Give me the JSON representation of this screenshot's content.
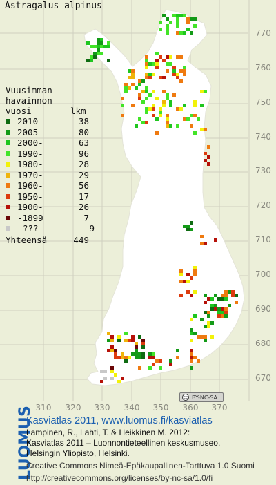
{
  "map": {
    "species": "Astragalus alpinus",
    "x_axis": {
      "ticks": [
        "310",
        "320",
        "330",
        "340",
        "350",
        "360",
        "370"
      ]
    },
    "y_axis": {
      "ticks": [
        "770",
        "760",
        "750",
        "740",
        "730",
        "720",
        "710",
        "700",
        "690",
        "680",
        "670"
      ]
    },
    "colors": {
      "background": "#ecefd9",
      "land": "#ffffff",
      "grid": "#cfcfc0",
      "label": "#8a8a80"
    }
  },
  "legend": {
    "heading_lines": [
      "Vuusimman",
      "havainnon"
    ],
    "heading_year": "vuosi",
    "heading_count": "lkm",
    "rows": [
      {
        "label": "2010-",
        "count": "38",
        "color": "#0f6b12"
      },
      {
        "label": "2005-",
        "count": "80",
        "color": "#139a17"
      },
      {
        "label": "2000-",
        "count": "63",
        "color": "#1fc61f"
      },
      {
        "label": "1990-",
        "count": "96",
        "color": "#42e428"
      },
      {
        "label": "1980-",
        "count": "28",
        "color": "#f2f20a"
      },
      {
        "label": "1970-",
        "count": "29",
        "color": "#f0b40a"
      },
      {
        "label": "1960-",
        "count": "56",
        "color": "#ef7a10"
      },
      {
        "label": "1950-",
        "count": "17",
        "color": "#dd3b0e"
      },
      {
        "label": "1900-",
        "count": "26",
        "color": "#b61109"
      },
      {
        "label": "-1899",
        "count": "7",
        "color": "#6a0707"
      },
      {
        "label": "???",
        "count": "9",
        "color": "#c8c8c8"
      }
    ],
    "total_label": "Yhteensä",
    "total_count": "449"
  },
  "license_badge": {
    "text": "BY-NC-SA",
    "icon": "cc-icon"
  },
  "footer": {
    "logo": "LUOMUS",
    "title": "Kasviatlas 2011, www.luomus.fi/kasviatlas",
    "reference_lines": [
      "Lampinen, R., Lahti, T. & Heikkinen M. 2012:",
      "Kasviatlas 2011 – Luonnontieteellinen keskusmuseo,",
      "Helsingin Yliopisto, Helsinki."
    ],
    "license_lines": [
      "Creative Commons Nimeä-Epäkaupallinen-Tarttuva 1.0 Suomi",
      "http://creativecommons.org/licenses/by-nc-sa/1.0/fi"
    ]
  }
}
